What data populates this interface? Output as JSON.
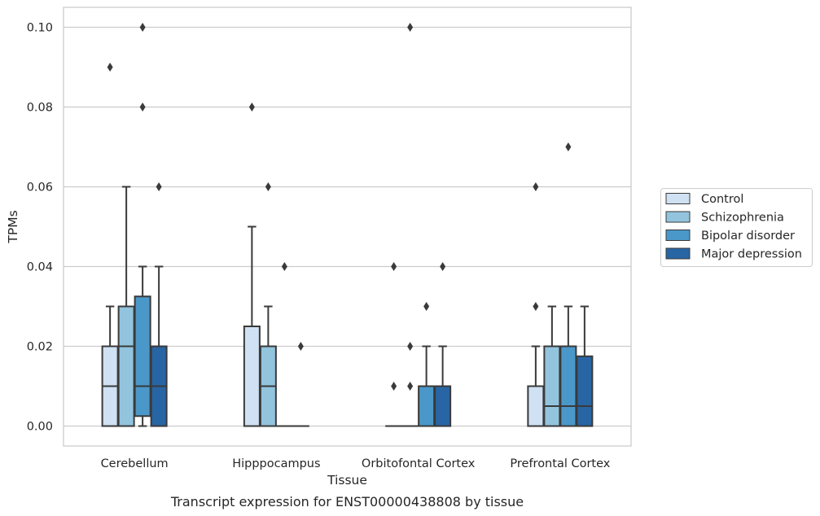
{
  "chart_data": {
    "type": "box",
    "title": "",
    "caption": "Transcript expression for ENST00000438808 by tissue",
    "xlabel": "Tissue",
    "ylabel": "TPMs",
    "ylim": [
      -0.005,
      0.105
    ],
    "yticks": [
      "0.00",
      "0.02",
      "0.04",
      "0.06",
      "0.08",
      "0.10"
    ],
    "ytick_values": [
      0,
      0.02,
      0.04,
      0.06,
      0.08,
      0.1
    ],
    "grid": "horizontal",
    "legend_position": "right",
    "categories": [
      "Cerebellum",
      "Hipppocampus",
      "Orbitofontal Cortex",
      "Prefrontal Cortex"
    ],
    "series": [
      {
        "name": "Control",
        "color": "#cfe1f2",
        "boxes": [
          {
            "q1": 0.0,
            "median": 0.01,
            "q3": 0.02,
            "whisker_low": 0.0,
            "whisker_high": 0.03,
            "outliers": [
              0.09
            ]
          },
          {
            "q1": 0.0,
            "median": 0.0,
            "q3": 0.025,
            "whisker_low": 0.0,
            "whisker_high": 0.05,
            "outliers": [
              0.08
            ]
          },
          {
            "q1": 0.0,
            "median": 0.0,
            "q3": 0.0,
            "whisker_low": 0.0,
            "whisker_high": 0.0,
            "outliers": [
              0.01,
              0.04
            ]
          },
          {
            "q1": 0.0,
            "median": 0.0,
            "q3": 0.01,
            "whisker_low": 0.0,
            "whisker_high": 0.02,
            "outliers": [
              0.03,
              0.06
            ]
          }
        ]
      },
      {
        "name": "Schizophrenia",
        "color": "#93c4de",
        "boxes": [
          {
            "q1": 0.0,
            "median": 0.02,
            "q3": 0.03,
            "whisker_low": 0.0,
            "whisker_high": 0.06,
            "outliers": []
          },
          {
            "q1": 0.0,
            "median": 0.01,
            "q3": 0.02,
            "whisker_low": 0.0,
            "whisker_high": 0.03,
            "outliers": [
              0.06
            ]
          },
          {
            "q1": 0.0,
            "median": 0.0,
            "q3": 0.0,
            "whisker_low": 0.0,
            "whisker_high": 0.0,
            "outliers": [
              0.01,
              0.02,
              0.1
            ]
          },
          {
            "q1": 0.0,
            "median": 0.005,
            "q3": 0.02,
            "whisker_low": 0.0,
            "whisker_high": 0.03,
            "outliers": []
          }
        ]
      },
      {
        "name": "Bipolar disorder",
        "color": "#4a98c9",
        "boxes": [
          {
            "q1": 0.0025,
            "median": 0.01,
            "q3": 0.0325,
            "whisker_low": 0.0,
            "whisker_high": 0.04,
            "outliers": [
              0.08,
              0.1
            ]
          },
          {
            "q1": 0.0,
            "median": 0.0,
            "q3": 0.0,
            "whisker_low": 0.0,
            "whisker_high": 0.0,
            "outliers": [
              0.04
            ]
          },
          {
            "q1": 0.0,
            "median": 0.01,
            "q3": 0.01,
            "whisker_low": 0.0,
            "whisker_high": 0.02,
            "outliers": [
              0.03
            ]
          },
          {
            "q1": 0.0,
            "median": 0.005,
            "q3": 0.02,
            "whisker_low": 0.0,
            "whisker_high": 0.03,
            "outliers": [
              0.07
            ]
          }
        ]
      },
      {
        "name": "Major depression",
        "color": "#2865a4",
        "boxes": [
          {
            "q1": 0.0,
            "median": 0.01,
            "q3": 0.02,
            "whisker_low": 0.0,
            "whisker_high": 0.04,
            "outliers": [
              0.06
            ]
          },
          {
            "q1": 0.0,
            "median": 0.0,
            "q3": 0.0,
            "whisker_low": 0.0,
            "whisker_high": 0.0,
            "outliers": [
              0.02
            ]
          },
          {
            "q1": 0.0,
            "median": 0.01,
            "q3": 0.01,
            "whisker_low": 0.0,
            "whisker_high": 0.02,
            "outliers": [
              0.04
            ]
          },
          {
            "q1": 0.0,
            "median": 0.005,
            "q3": 0.0175,
            "whisker_low": 0.0,
            "whisker_high": 0.03,
            "outliers": []
          }
        ]
      }
    ]
  }
}
